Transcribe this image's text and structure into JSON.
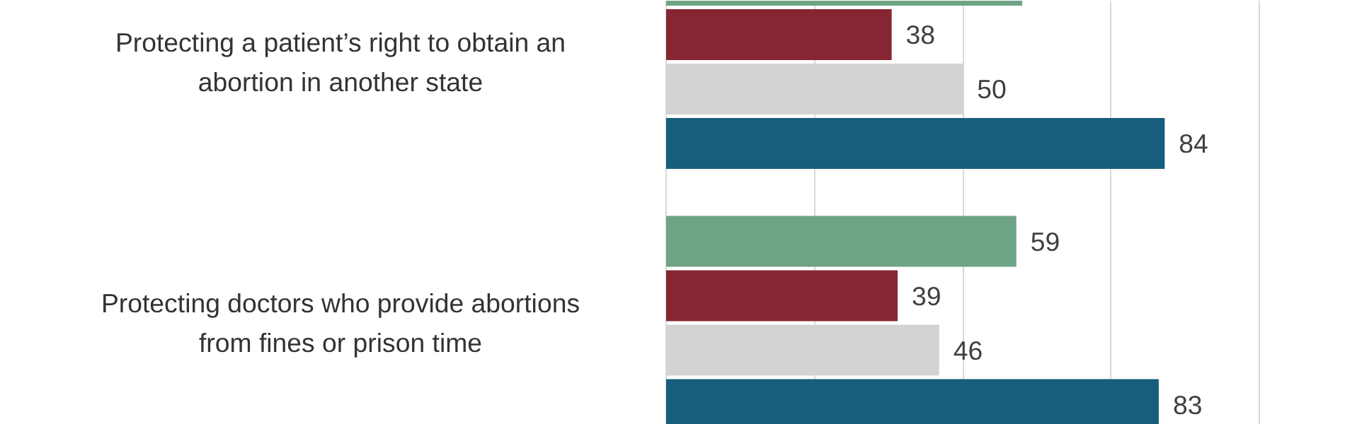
{
  "chart_data": {
    "type": "bar",
    "orientation": "horizontal",
    "categories": [
      "Protecting a patient’s right to obtain an abortion in another state",
      "Protecting doctors who provide abortions from fines or prison time"
    ],
    "series": [
      {
        "color": "#6fa386",
        "values": [
          60,
          59
        ],
        "value_labels": [
          null,
          "59"
        ]
      },
      {
        "color": "#862633",
        "values": [
          38,
          39
        ],
        "value_labels": [
          "38",
          "39"
        ]
      },
      {
        "color": "#d3d3d3",
        "values": [
          50,
          46
        ],
        "value_labels": [
          "50",
          "46"
        ]
      },
      {
        "color": "#175e7c",
        "values": [
          84,
          83
        ],
        "value_labels": [
          "84",
          "83"
        ]
      }
    ],
    "xlim": [
      0,
      114.5
    ],
    "xticks": [
      {
        "value": 0,
        "label": null
      },
      {
        "value": 25,
        "label": null
      },
      {
        "value": 50,
        "label": null
      },
      {
        "value": 75,
        "label": null
      },
      {
        "value": 100,
        "label": null
      }
    ],
    "grid": "x"
  }
}
